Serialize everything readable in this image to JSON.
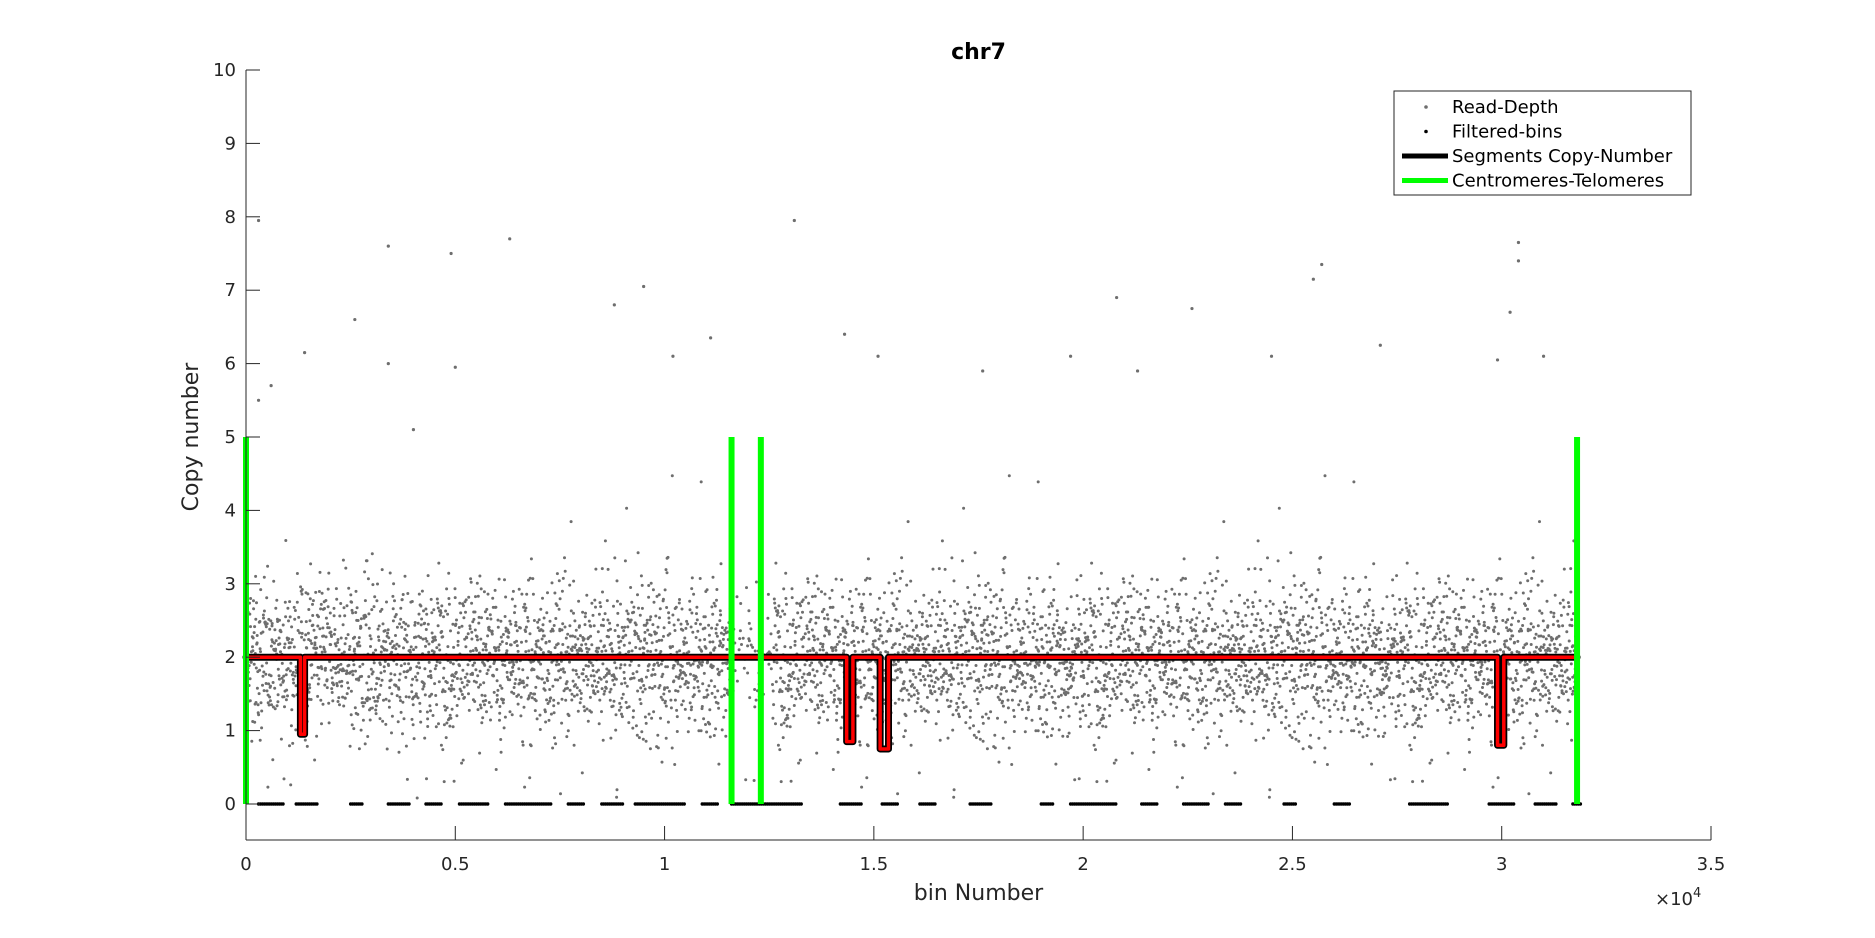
{
  "chart_data": {
    "type": "scatter",
    "title": "chr7",
    "xlabel": "bin Number",
    "ylabel": "Copy number",
    "x_exponent_label": "×10^4",
    "x_exponent_base": "×10",
    "x_exponent_power": "4",
    "xlim": [
      0,
      35000
    ],
    "ylim": [
      0,
      10
    ],
    "x_ticks": [
      0,
      5000,
      10000,
      15000,
      20000,
      25000,
      30000,
      35000
    ],
    "x_tick_labels": [
      "0",
      "0.5",
      "1",
      "1.5",
      "2",
      "2.5",
      "3",
      "3.5"
    ],
    "y_ticks": [
      0,
      1,
      2,
      3,
      4,
      5,
      6,
      7,
      8,
      9,
      10
    ],
    "y_tick_labels": [
      "0",
      "1",
      "2",
      "3",
      "4",
      "5",
      "6",
      "7",
      "8",
      "9",
      "10"
    ],
    "legend_position": "top-right",
    "legend": [
      {
        "label": "Read-Depth",
        "marker": "dot",
        "color": "#6e6e6e"
      },
      {
        "label": "Filtered-bins",
        "marker": "dot",
        "color": "#000000"
      },
      {
        "label": "Segments Copy-Number",
        "marker": "line",
        "color": "#000000"
      },
      {
        "label": "Centromeres-Telomeres",
        "marker": "line",
        "color": "#00ff00"
      }
    ],
    "colors": {
      "read_depth": "#6e6e6e",
      "filtered": "#000000",
      "segment_fill": "#ff0000",
      "segment_edge": "#000000",
      "centromere": "#00ff00"
    },
    "read_depth_level": 2,
    "read_depth_range": [
      0,
      31800
    ],
    "segments": [
      {
        "start": 0,
        "end": 1300,
        "cn": 2.0
      },
      {
        "start": 1300,
        "end": 1400,
        "cn": 0.95
      },
      {
        "start": 1400,
        "end": 14350,
        "cn": 2.0
      },
      {
        "start": 14350,
        "end": 14500,
        "cn": 0.85
      },
      {
        "start": 14500,
        "end": 15150,
        "cn": 2.0
      },
      {
        "start": 15150,
        "end": 15350,
        "cn": 0.75
      },
      {
        "start": 15350,
        "end": 29900,
        "cn": 2.0
      },
      {
        "start": 29900,
        "end": 30050,
        "cn": 0.8
      },
      {
        "start": 30050,
        "end": 31800,
        "cn": 2.0
      }
    ],
    "centromeres_telomeres": [
      {
        "x": 0,
        "y_range": [
          0,
          5
        ]
      },
      {
        "x": 11600,
        "y_range": [
          0,
          5
        ]
      },
      {
        "x": 12300,
        "y_range": [
          0,
          5
        ]
      },
      {
        "x": 31800,
        "y_range": [
          0,
          5
        ]
      }
    ],
    "filtered_bins_y": 0,
    "filtered_bins_x_ranges": [
      [
        300,
        900
      ],
      [
        1200,
        1700
      ],
      [
        2500,
        2800
      ],
      [
        3400,
        3900
      ],
      [
        4300,
        4700
      ],
      [
        5100,
        5800
      ],
      [
        6200,
        7300
      ],
      [
        7700,
        8100
      ],
      [
        8500,
        9000
      ],
      [
        9300,
        10500
      ],
      [
        10900,
        11300
      ],
      [
        11600,
        13300
      ],
      [
        14200,
        14700
      ],
      [
        15200,
        15600
      ],
      [
        16100,
        16500
      ],
      [
        17300,
        17800
      ],
      [
        19000,
        19300
      ],
      [
        19700,
        20800
      ],
      [
        21400,
        21800
      ],
      [
        22400,
        23000
      ],
      [
        23400,
        23800
      ],
      [
        24800,
        25100
      ],
      [
        26000,
        26400
      ],
      [
        27800,
        28700
      ],
      [
        29700,
        30300
      ],
      [
        30800,
        31300
      ],
      [
        31700,
        31900
      ]
    ],
    "outliers": [
      {
        "x": 300,
        "y": 7.95
      },
      {
        "x": 300,
        "y": 5.5
      },
      {
        "x": 600,
        "y": 5.7
      },
      {
        "x": 1400,
        "y": 6.15
      },
      {
        "x": 2600,
        "y": 6.6
      },
      {
        "x": 3400,
        "y": 7.6
      },
      {
        "x": 3400,
        "y": 6.0
      },
      {
        "x": 4000,
        "y": 5.1
      },
      {
        "x": 4900,
        "y": 7.5
      },
      {
        "x": 5000,
        "y": 5.95
      },
      {
        "x": 6300,
        "y": 7.7
      },
      {
        "x": 8800,
        "y": 6.8
      },
      {
        "x": 9500,
        "y": 7.05
      },
      {
        "x": 10200,
        "y": 6.1
      },
      {
        "x": 11100,
        "y": 6.35
      },
      {
        "x": 13100,
        "y": 7.95
      },
      {
        "x": 14300,
        "y": 6.4
      },
      {
        "x": 15100,
        "y": 6.1
      },
      {
        "x": 17600,
        "y": 5.9
      },
      {
        "x": 19700,
        "y": 6.1
      },
      {
        "x": 20800,
        "y": 6.9
      },
      {
        "x": 21300,
        "y": 5.9
      },
      {
        "x": 22600,
        "y": 6.75
      },
      {
        "x": 24500,
        "y": 6.1
      },
      {
        "x": 25500,
        "y": 7.15
      },
      {
        "x": 25700,
        "y": 7.35
      },
      {
        "x": 27100,
        "y": 6.25
      },
      {
        "x": 29900,
        "y": 6.05
      },
      {
        "x": 30200,
        "y": 6.7
      },
      {
        "x": 30400,
        "y": 7.65
      },
      {
        "x": 30400,
        "y": 7.4
      },
      {
        "x": 31000,
        "y": 6.1
      }
    ]
  }
}
